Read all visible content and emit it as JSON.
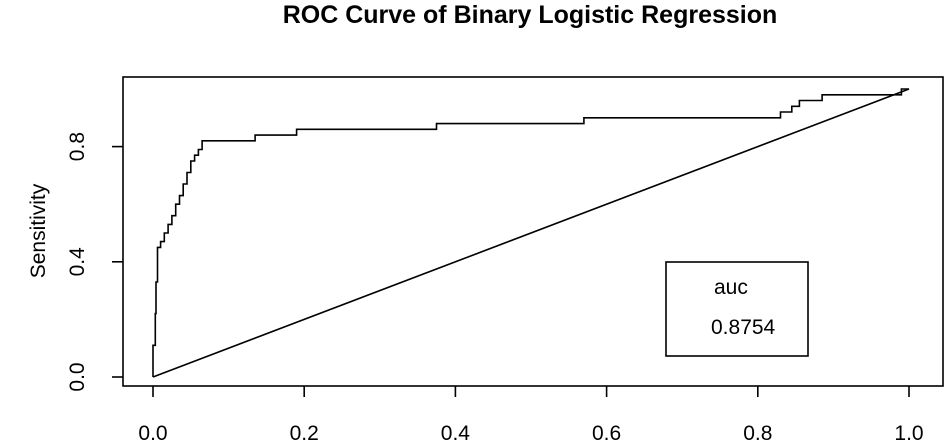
{
  "chart_data": {
    "type": "line",
    "title": "ROC Curve of Binary Logistic Regression",
    "xlabel": "",
    "ylabel": "Sensitivity",
    "xlim": [
      0.0,
      1.0
    ],
    "ylim": [
      0.0,
      1.0
    ],
    "x_ticks": [
      "0.0",
      "0.2",
      "0.4",
      "0.6",
      "0.8",
      "1.0"
    ],
    "y_ticks": [
      "0.0",
      "0.4",
      "0.8"
    ],
    "grid": false,
    "series": [
      {
        "x": [
          0.0,
          0.0,
          0.003,
          0.003,
          0.004,
          0.004,
          0.006,
          0.006,
          0.01,
          0.01,
          0.015,
          0.015,
          0.02,
          0.02,
          0.025,
          0.025,
          0.03,
          0.03,
          0.035,
          0.035,
          0.04,
          0.04,
          0.045,
          0.045,
          0.05,
          0.05,
          0.055,
          0.055,
          0.06,
          0.06,
          0.065,
          0.065,
          0.135,
          0.135,
          0.19,
          0.19,
          0.375,
          0.375,
          0.57,
          0.57,
          0.83,
          0.83,
          0.845,
          0.845,
          0.855,
          0.855,
          0.885,
          0.885,
          0.99,
          0.99,
          1.0
        ],
        "y": [
          0.0,
          0.11,
          0.11,
          0.22,
          0.22,
          0.33,
          0.33,
          0.45,
          0.45,
          0.47,
          0.47,
          0.5,
          0.5,
          0.53,
          0.53,
          0.56,
          0.56,
          0.6,
          0.6,
          0.63,
          0.63,
          0.67,
          0.67,
          0.71,
          0.71,
          0.75,
          0.75,
          0.77,
          0.77,
          0.79,
          0.79,
          0.82,
          0.82,
          0.84,
          0.84,
          0.86,
          0.86,
          0.88,
          0.88,
          0.9,
          0.9,
          0.92,
          0.92,
          0.94,
          0.94,
          0.96,
          0.96,
          0.98,
          0.98,
          1.0,
          1.0
        ]
      },
      {
        "x": [
          0.0,
          1.0
        ],
        "y": [
          0.0,
          1.0
        ]
      }
    ],
    "legend": {
      "title": "auc",
      "value": "0.8754",
      "placement": "bottom-right"
    }
  }
}
